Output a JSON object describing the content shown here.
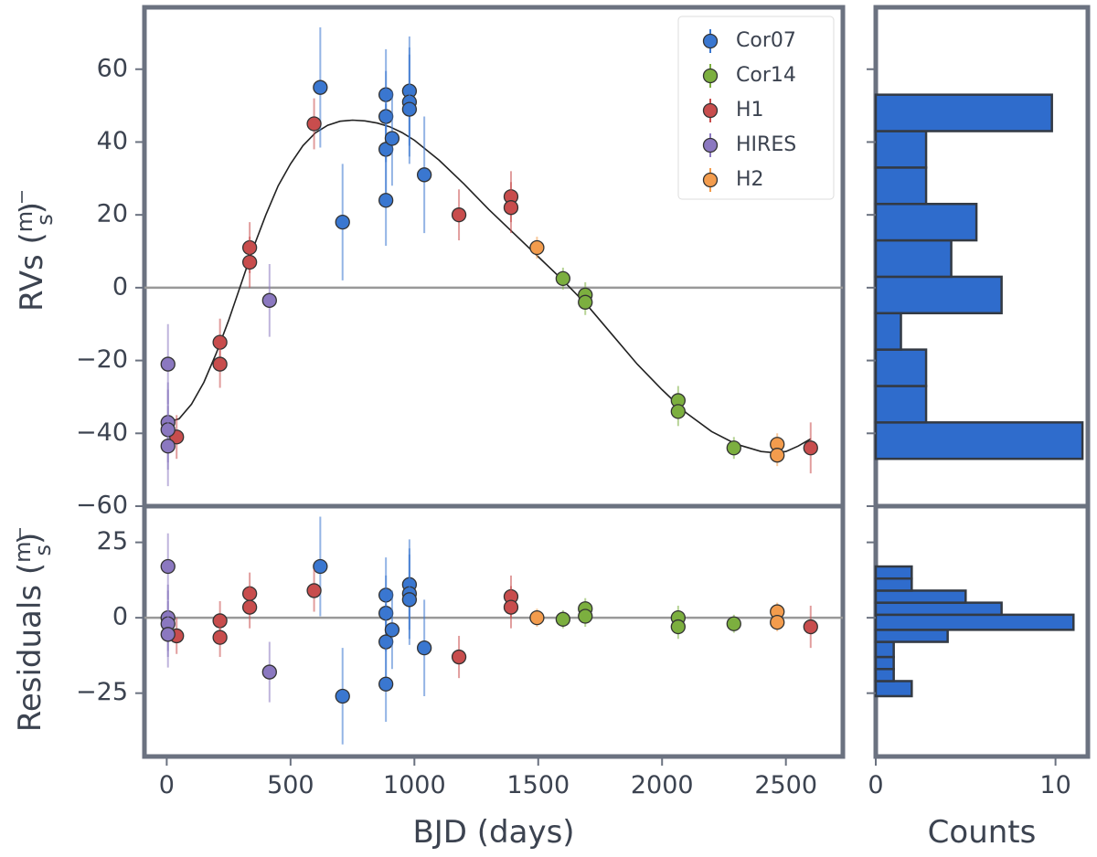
{
  "figure": {
    "main_xlabel": "BJD (days)",
    "hist_xlabel": "Counts"
  },
  "colors": {
    "frame": "#6b7280",
    "zero_line": "#999999",
    "model": "#222222",
    "hist_fill": "#2f6ccc",
    "hist_edge": "#333a44",
    "text": "#3c4350"
  },
  "chart_data": [
    {
      "id": "rv",
      "type": "scatter",
      "ylabel": "RVs (m/s)",
      "xlim": [
        -90,
        2730
      ],
      "ylim": [
        -60,
        77
      ],
      "xticks": [
        0,
        500,
        1000,
        1500,
        2000,
        2500
      ],
      "xtick_labels": [
        "",
        "",
        "",
        "",
        "",
        ""
      ],
      "yticks": [
        -60,
        -40,
        -20,
        0,
        20,
        40,
        60
      ],
      "ytick_labels": [
        "−60",
        "−40",
        "−20",
        "0",
        "20",
        "40",
        "60"
      ],
      "zero_line": 0,
      "legend": {
        "position": "top-right"
      },
      "model": {
        "name": "",
        "points": [
          [
            0,
            -37
          ],
          [
            50,
            -36
          ],
          [
            100,
            -32
          ],
          [
            150,
            -26
          ],
          [
            200,
            -18
          ],
          [
            250,
            -9
          ],
          [
            300,
            1
          ],
          [
            350,
            11
          ],
          [
            400,
            20
          ],
          [
            450,
            28
          ],
          [
            500,
            34
          ],
          [
            550,
            39
          ],
          [
            600,
            42.5
          ],
          [
            650,
            44.6
          ],
          [
            700,
            45.7
          ],
          [
            750,
            46
          ],
          [
            800,
            45.8
          ],
          [
            850,
            45.2
          ],
          [
            900,
            44.2
          ],
          [
            950,
            42.6
          ],
          [
            1000,
            40.5
          ],
          [
            1100,
            35
          ],
          [
            1200,
            28.5
          ],
          [
            1300,
            21.5
          ],
          [
            1400,
            15
          ],
          [
            1500,
            8.5
          ],
          [
            1600,
            2
          ],
          [
            1700,
            -5
          ],
          [
            1800,
            -13
          ],
          [
            1900,
            -21
          ],
          [
            2000,
            -28
          ],
          [
            2100,
            -34.5
          ],
          [
            2200,
            -39.5
          ],
          [
            2300,
            -43
          ],
          [
            2400,
            -45
          ],
          [
            2450,
            -45.3
          ],
          [
            2500,
            -45
          ],
          [
            2550,
            -43.5
          ],
          [
            2600,
            -41.5
          ]
        ]
      },
      "series": [
        {
          "name": "Cor07",
          "color": "#3a77d0",
          "points": [
            [
              620,
              55,
              16.5
            ],
            [
              710,
              18,
              16
            ],
            [
              885,
              53,
              12.5
            ],
            [
              885,
              47,
              12.5
            ],
            [
              885,
              38,
              12.5
            ],
            [
              885,
              24,
              12.5
            ],
            [
              910,
              41,
              13
            ],
            [
              980,
              54,
              15
            ],
            [
              980,
              51,
              15
            ],
            [
              980,
              49,
              15
            ],
            [
              1040,
              31,
              16
            ]
          ]
        },
        {
          "name": "Cor14",
          "color": "#7caf3f",
          "points": [
            [
              1600,
              2.5,
              3
            ],
            [
              1690,
              -2,
              3.5
            ],
            [
              1690,
              -4,
              3.5
            ],
            [
              2065,
              -31,
              4
            ],
            [
              2065,
              -34,
              4
            ],
            [
              2290,
              -44,
              3
            ]
          ]
        },
        {
          "name": "H1",
          "color": "#c84d4d",
          "points": [
            [
              40,
              -41,
              6
            ],
            [
              215,
              -15,
              6.5
            ],
            [
              215,
              -21,
              6.5
            ],
            [
              335,
              11,
              7
            ],
            [
              335,
              7,
              7
            ],
            [
              595,
              45,
              7
            ],
            [
              1180,
              20,
              7
            ],
            [
              1390,
              25,
              7
            ],
            [
              1390,
              22,
              7
            ],
            [
              2600,
              -44,
              7
            ]
          ]
        },
        {
          "name": "HIRES",
          "color": "#8b78c0",
          "points": [
            [
              5,
              -21,
              11
            ],
            [
              5,
              -37,
              11
            ],
            [
              5,
              -39,
              11
            ],
            [
              5,
              -43.5,
              11
            ],
            [
              415,
              -3.5,
              10
            ]
          ]
        },
        {
          "name": "H2",
          "color": "#f39c4d",
          "points": [
            [
              1495,
              11,
              3
            ],
            [
              2465,
              -43,
              3
            ],
            [
              2465,
              -46,
              3
            ]
          ]
        }
      ]
    },
    {
      "id": "resid",
      "type": "scatter",
      "xlabel": "BJD (days)",
      "ylabel": "Residuals (m/s)",
      "xlim": [
        -90,
        2730
      ],
      "ylim": [
        -46,
        37
      ],
      "xticks": [
        0,
        500,
        1000,
        1500,
        2000,
        2500
      ],
      "xtick_labels": [
        "0",
        "500",
        "1000",
        "1500",
        "2000",
        "2500"
      ],
      "yticks": [
        -25,
        0,
        25
      ],
      "ytick_labels": [
        "−25",
        "0",
        "25"
      ],
      "zero_line": 0,
      "series": [
        {
          "name": "Cor07",
          "color": "#3a77d0",
          "points": [
            [
              620,
              17,
              16.5
            ],
            [
              710,
              -26,
              16
            ],
            [
              885,
              7.5,
              12.5
            ],
            [
              885,
              1.5,
              12.5
            ],
            [
              885,
              -8,
              12.5
            ],
            [
              885,
              -22,
              12.5
            ],
            [
              910,
              -4,
              13
            ],
            [
              980,
              11,
              15
            ],
            [
              980,
              8,
              15
            ],
            [
              980,
              6,
              15
            ],
            [
              1040,
              -10,
              16
            ]
          ]
        },
        {
          "name": "Cor14",
          "color": "#7caf3f",
          "points": [
            [
              1600,
              -0.5,
              3
            ],
            [
              1690,
              3,
              3.5
            ],
            [
              1690,
              0.5,
              3.5
            ],
            [
              2065,
              0,
              4
            ],
            [
              2065,
              -3,
              4
            ],
            [
              2290,
              -2,
              3
            ]
          ]
        },
        {
          "name": "H1",
          "color": "#c84d4d",
          "points": [
            [
              40,
              -6,
              6
            ],
            [
              215,
              -1,
              6.5
            ],
            [
              215,
              -6.5,
              6.5
            ],
            [
              335,
              8,
              7
            ],
            [
              335,
              3.5,
              7
            ],
            [
              595,
              9,
              7
            ],
            [
              1180,
              -13,
              7
            ],
            [
              1390,
              7,
              7
            ],
            [
              1390,
              3.5,
              7
            ],
            [
              2600,
              -3,
              7
            ]
          ]
        },
        {
          "name": "HIRES",
          "color": "#8b78c0",
          "points": [
            [
              5,
              17,
              11
            ],
            [
              5,
              0,
              11
            ],
            [
              5,
              -2,
              11
            ],
            [
              5,
              -5.5,
              11
            ],
            [
              415,
              -18,
              10
            ]
          ]
        },
        {
          "name": "H2",
          "color": "#f39c4d",
          "points": [
            [
              1495,
              0,
              3
            ],
            [
              2465,
              2,
              3
            ],
            [
              2465,
              -1.5,
              3
            ]
          ]
        }
      ]
    },
    {
      "id": "rv_hist",
      "type": "bar",
      "orientation": "horizontal",
      "xlim": [
        0,
        11.8
      ],
      "ylim": [
        -60,
        77
      ],
      "xticks": [
        0,
        10
      ],
      "xtick_labels": [
        "",
        ""
      ],
      "yticks": [
        -60,
        -40,
        -20,
        0,
        20,
        40,
        60
      ],
      "bins": [
        [
          -47,
          -37,
          11.5
        ],
        [
          -37,
          -27,
          2.8
        ],
        [
          -27,
          -17,
          2.8
        ],
        [
          -17,
          -7,
          1.4
        ],
        [
          -7,
          3,
          7
        ],
        [
          3,
          13,
          4.2
        ],
        [
          13,
          23,
          5.6
        ],
        [
          23,
          33,
          2.8
        ],
        [
          33,
          43,
          2.8
        ],
        [
          43,
          53,
          9.8
        ]
      ]
    },
    {
      "id": "resid_hist",
      "type": "bar",
      "orientation": "horizontal",
      "xlabel": "Counts",
      "xlim": [
        0,
        11.8
      ],
      "ylim": [
        -46,
        37
      ],
      "xticks": [
        0,
        10
      ],
      "xtick_labels": [
        "0",
        "10"
      ],
      "yticks": [
        -25,
        0,
        25
      ],
      "bins": [
        [
          -26,
          -21,
          2
        ],
        [
          -21,
          -17,
          1
        ],
        [
          -17,
          -13,
          1
        ],
        [
          -13,
          -8,
          1
        ],
        [
          -8,
          -4,
          4
        ],
        [
          -4,
          1,
          11
        ],
        [
          1,
          5,
          7
        ],
        [
          5,
          9,
          5
        ],
        [
          9,
          13,
          2
        ],
        [
          13,
          17,
          2
        ]
      ]
    }
  ]
}
